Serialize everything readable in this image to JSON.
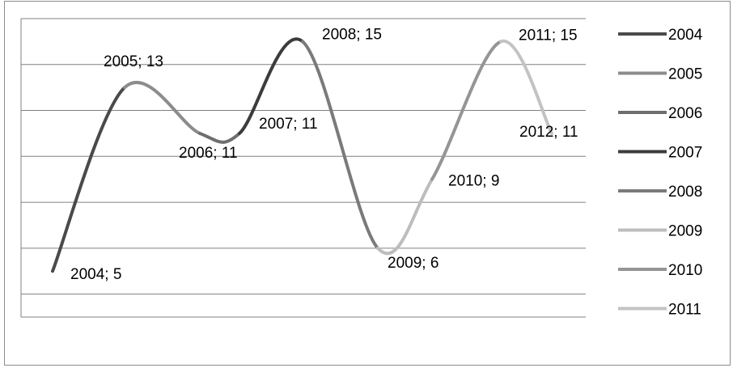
{
  "chart_data": {
    "type": "line",
    "smooth": true,
    "title": "",
    "xlabel": "",
    "ylabel": "",
    "ylim": [
      3,
      16
    ],
    "grid": true,
    "legend_position": "right",
    "points": [
      {
        "x": "2004",
        "y": 5,
        "label": "2004; 5"
      },
      {
        "x": "2005",
        "y": 13,
        "label": "2005; 13"
      },
      {
        "x": "2006",
        "y": 11,
        "label": "2006; 11"
      },
      {
        "x": "2007",
        "y": 11,
        "label": "2007; 11"
      },
      {
        "x": "2008",
        "y": 15,
        "label": "2008; 15"
      },
      {
        "x": "2009",
        "y": 6,
        "label": "2009; 6"
      },
      {
        "x": "2010",
        "y": 9,
        "label": "2010; 9"
      },
      {
        "x": "2011",
        "y": 15,
        "label": "2011; 15"
      },
      {
        "x": "2012",
        "y": 11,
        "label": "2012; 11"
      }
    ],
    "series": [
      {
        "name": "2004",
        "color": "#4a4a4a"
      },
      {
        "name": "2005",
        "color": "#8c8c8c"
      },
      {
        "name": "2006",
        "color": "#6e6e6e"
      },
      {
        "name": "2007",
        "color": "#3c3c3c"
      },
      {
        "name": "2008",
        "color": "#7a7a7a"
      },
      {
        "name": "2009",
        "color": "#bdbdbd"
      },
      {
        "name": "2010",
        "color": "#959595"
      },
      {
        "name": "2011",
        "color": "#c3c3c3"
      }
    ]
  }
}
